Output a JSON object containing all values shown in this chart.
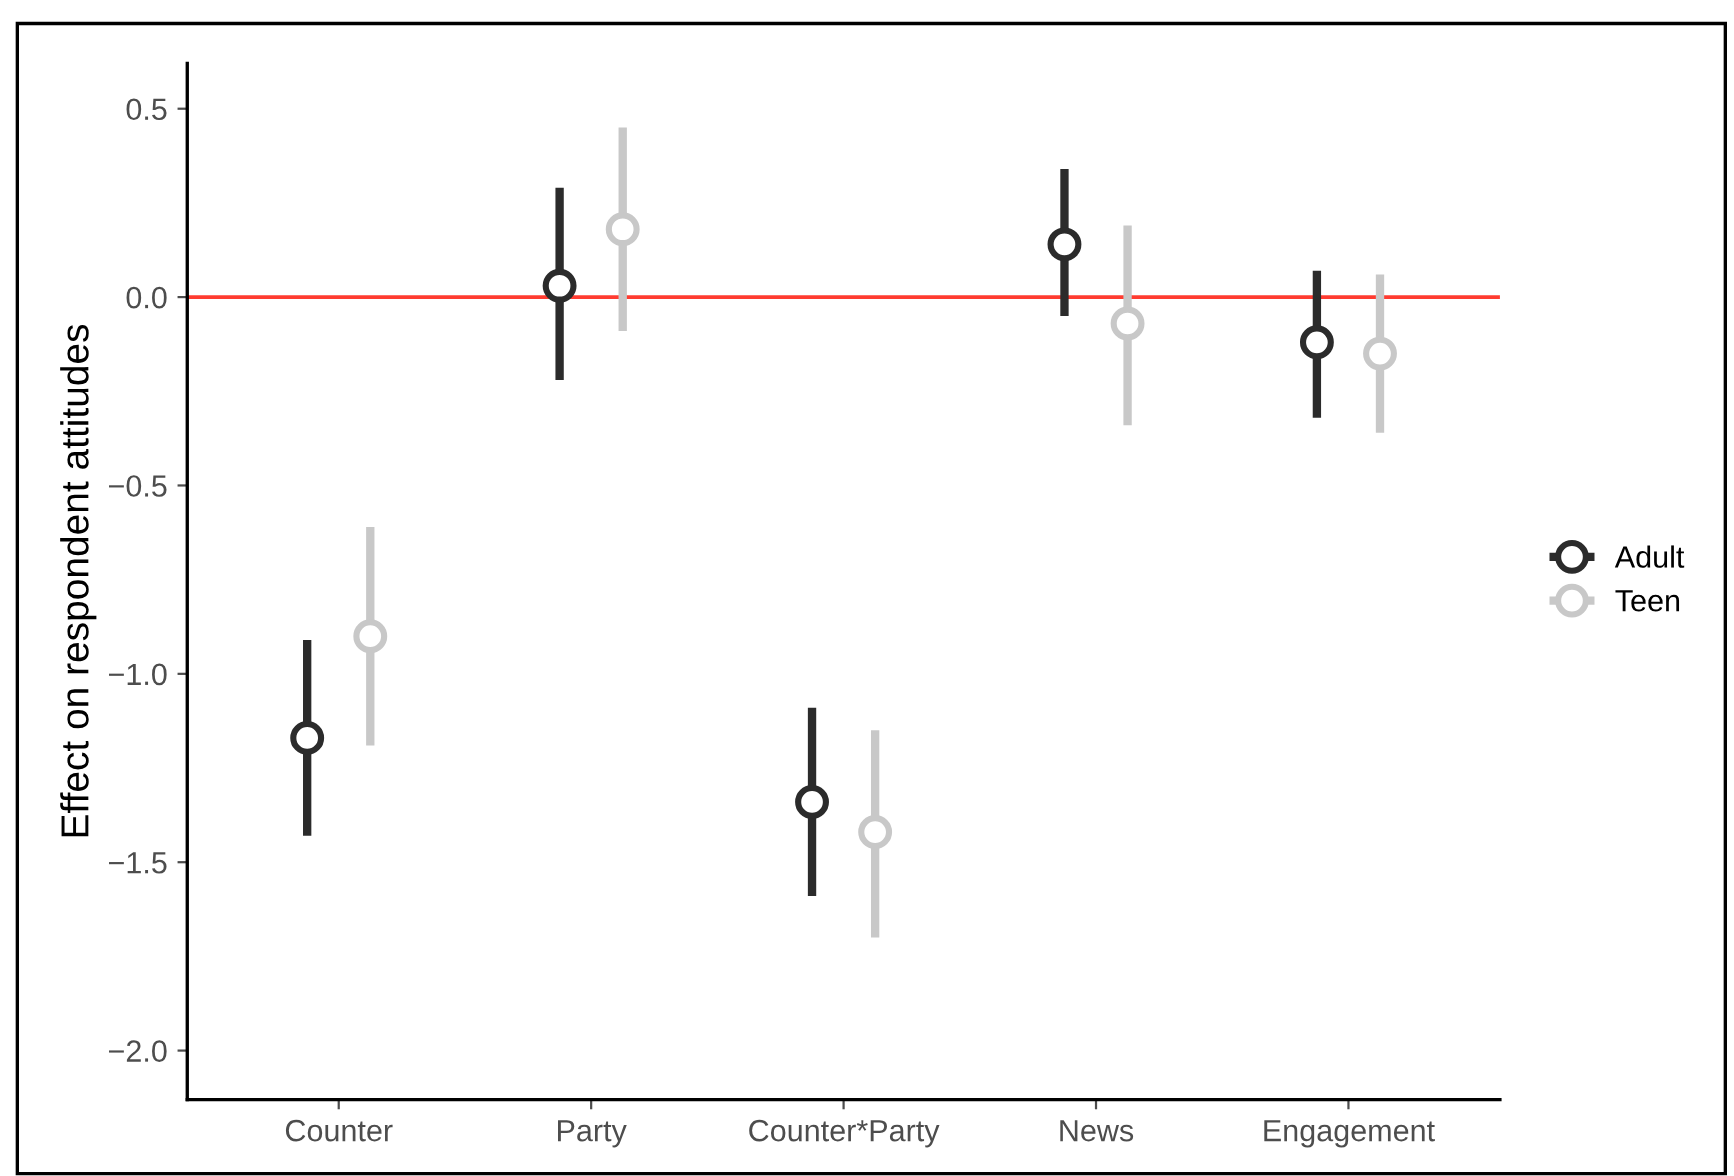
{
  "chart_data": {
    "type": "scatter",
    "ylabel": "Effect on respondent attitudes",
    "categories": [
      "Counter",
      "Party",
      "Counter*Party",
      "News",
      "Engagement"
    ],
    "series": [
      {
        "name": "Adult",
        "color": "#2b2b2b",
        "values": [
          -1.17,
          0.03,
          -1.34,
          0.14,
          -0.12
        ],
        "errors": [
          [
            -1.43,
            -0.91
          ],
          [
            -0.22,
            0.29
          ],
          [
            -1.59,
            -1.09
          ],
          [
            -0.05,
            0.34
          ],
          [
            -0.32,
            0.07
          ]
        ]
      },
      {
        "name": "Teen",
        "color": "#c8c8c8",
        "values": [
          -0.9,
          0.18,
          -1.42,
          -0.07,
          -0.15
        ],
        "errors": [
          [
            -1.19,
            -0.61
          ],
          [
            -0.09,
            0.45
          ],
          [
            -1.7,
            -1.15
          ],
          [
            -0.34,
            0.19
          ],
          [
            -0.36,
            0.06
          ]
        ]
      }
    ],
    "ylim": [
      -2.13,
      0.62
    ],
    "yticks": [
      0.5,
      {
        "value": 0,
        "label": "0.0"
      },
      -0.5,
      {
        "value": -1,
        "label": "−1.0"
      },
      -1.5,
      {
        "value": -2,
        "label": "−2.0"
      }
    ],
    "ref_lines": [
      {
        "axis": "y",
        "value": 0,
        "color": "#ff3b30"
      }
    ],
    "marker": "circle",
    "grid": false,
    "legend": "right"
  }
}
